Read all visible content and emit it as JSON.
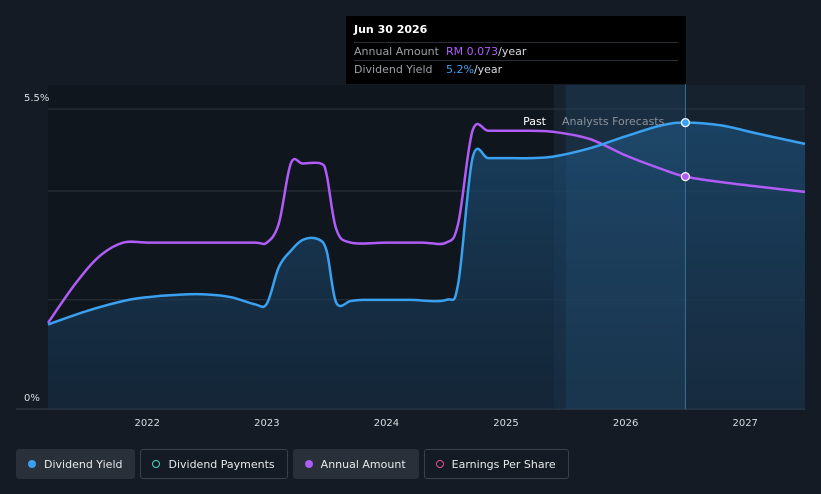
{
  "tooltip": {
    "date": "Jun 30 2026",
    "rows": [
      {
        "label": "Annual Amount",
        "value": "RM 0.073",
        "unit": "/year"
      },
      {
        "label": "Dividend Yield",
        "value": "5.2%",
        "unit": "/year"
      }
    ]
  },
  "regions": {
    "past": "Past",
    "forecast": "Analysts Forecasts"
  },
  "legend": [
    {
      "label": "Dividend Yield",
      "color": "#3aa0f0",
      "filled": true,
      "active": true
    },
    {
      "label": "Dividend Payments",
      "color": "#4ad8c0",
      "filled": false,
      "active": false
    },
    {
      "label": "Annual Amount",
      "color": "#b05cf8",
      "filled": true,
      "active": true
    },
    {
      "label": "Earnings Per Share",
      "color": "#e0508a",
      "filled": false,
      "active": false
    }
  ],
  "chart_data": {
    "type": "line",
    "y_ticks": [
      {
        "value": 5.5,
        "label": "5.5%"
      },
      {
        "value": 0,
        "label": "0%"
      }
    ],
    "ylim": [
      0,
      5.5
    ],
    "xlim": [
      2021.17,
      2027.5
    ],
    "x_ticks": [
      "2022",
      "2023",
      "2024",
      "2025",
      "2026",
      "2027"
    ],
    "past_end": 2025.4,
    "forecast_start": 2025.5,
    "tooltip_x": 2026.5,
    "grid": true,
    "series": [
      {
        "name": "Dividend Yield",
        "color": "#3aa0f0",
        "points": [
          [
            2021.17,
            1.55
          ],
          [
            2021.5,
            1.8
          ],
          [
            2021.8,
            1.98
          ],
          [
            2022.0,
            2.05
          ],
          [
            2022.3,
            2.1
          ],
          [
            2022.5,
            2.1
          ],
          [
            2022.7,
            2.05
          ],
          [
            2022.9,
            1.92
          ],
          [
            2023.0,
            1.93
          ],
          [
            2023.1,
            2.6
          ],
          [
            2023.2,
            2.9
          ],
          [
            2023.3,
            3.1
          ],
          [
            2023.42,
            3.12
          ],
          [
            2023.5,
            2.9
          ],
          [
            2023.58,
            1.95
          ],
          [
            2023.7,
            1.98
          ],
          [
            2023.8,
            2.0
          ],
          [
            2024.0,
            2.0
          ],
          [
            2024.2,
            2.0
          ],
          [
            2024.5,
            2.0
          ],
          [
            2024.6,
            2.3
          ],
          [
            2024.72,
            4.6
          ],
          [
            2024.85,
            4.6
          ],
          [
            2025.0,
            4.6
          ],
          [
            2025.2,
            4.6
          ],
          [
            2025.4,
            4.63
          ],
          [
            2025.7,
            4.78
          ],
          [
            2026.0,
            5.0
          ],
          [
            2026.3,
            5.2
          ],
          [
            2026.5,
            5.25
          ],
          [
            2026.8,
            5.2
          ],
          [
            2027.1,
            5.05
          ],
          [
            2027.5,
            4.86
          ]
        ]
      },
      {
        "name": "Annual Amount",
        "color": "#b05cf8",
        "points": [
          [
            2021.17,
            1.58
          ],
          [
            2021.4,
            2.3
          ],
          [
            2021.6,
            2.8
          ],
          [
            2021.8,
            3.05
          ],
          [
            2022.0,
            3.05
          ],
          [
            2022.3,
            3.05
          ],
          [
            2022.6,
            3.05
          ],
          [
            2022.9,
            3.05
          ],
          [
            2023.0,
            3.05
          ],
          [
            2023.1,
            3.4
          ],
          [
            2023.2,
            4.5
          ],
          [
            2023.3,
            4.5
          ],
          [
            2023.45,
            4.5
          ],
          [
            2023.5,
            4.3
          ],
          [
            2023.58,
            3.3
          ],
          [
            2023.7,
            3.05
          ],
          [
            2024.0,
            3.05
          ],
          [
            2024.3,
            3.05
          ],
          [
            2024.5,
            3.05
          ],
          [
            2024.6,
            3.4
          ],
          [
            2024.72,
            5.1
          ],
          [
            2024.85,
            5.1
          ],
          [
            2025.0,
            5.1
          ],
          [
            2025.2,
            5.1
          ],
          [
            2025.4,
            5.08
          ],
          [
            2025.7,
            4.95
          ],
          [
            2026.0,
            4.65
          ],
          [
            2026.3,
            4.4
          ],
          [
            2026.5,
            4.26
          ],
          [
            2026.8,
            4.16
          ],
          [
            2027.1,
            4.08
          ],
          [
            2027.5,
            3.98
          ]
        ]
      }
    ]
  }
}
